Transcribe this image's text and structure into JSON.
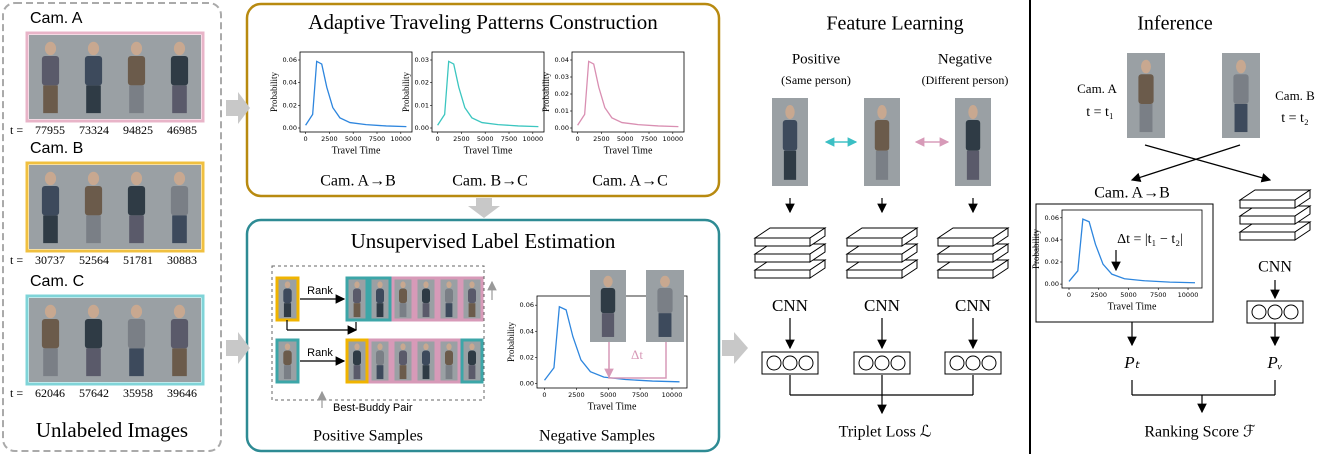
{
  "unlabeled": {
    "title": "Unlabeled Images",
    "cameras": [
      {
        "label": "Cam. A",
        "t_label": "t =",
        "times": [
          77955,
          73324,
          94825,
          46985
        ]
      },
      {
        "label": "Cam. B",
        "t_label": "t =",
        "times": [
          30737,
          52564,
          51781,
          30883
        ]
      },
      {
        "label": "Cam. C",
        "t_label": "t =",
        "times": [
          62046,
          57642,
          35958,
          39646
        ]
      }
    ]
  },
  "traveling_patterns": {
    "title": "Adaptive Traveling Patterns Construction",
    "plots": [
      {
        "caption": "Cam. A→B",
        "ylabel": "Probability",
        "xlabel": "Travel Time",
        "yticks": [
          "0.00",
          "0.02",
          "0.04",
          "0.06"
        ],
        "xticks": [
          "0",
          "2500",
          "5000",
          "7500",
          "10000"
        ]
      },
      {
        "caption": "Cam. B→C",
        "ylabel": "Probability",
        "xlabel": "Travel Time",
        "yticks": [
          "0.00",
          "0.01",
          "0.02",
          "0.03"
        ],
        "xticks": [
          "0",
          "2500",
          "5000",
          "7500",
          "10000"
        ]
      },
      {
        "caption": "Cam. A→C",
        "ylabel": "Probability",
        "xlabel": "Travel Time",
        "yticks": [
          "0.00",
          "0.01",
          "0.02",
          "0.03",
          "0.04"
        ],
        "xticks": [
          "0",
          "2500",
          "5000",
          "7500",
          "10000"
        ]
      }
    ]
  },
  "label_estimation": {
    "title": "Unsupervised Label Estimation",
    "rank_labels": [
      "Rank",
      "Rank"
    ],
    "best_buddy": "Best-Buddy Pair",
    "positive_caption": "Positive Samples",
    "negative_caption": "Negative Samples",
    "delta_t": "Δt",
    "plot": {
      "ylabel": "Probability",
      "xlabel": "Travel Time",
      "yticks": [
        "0.00",
        "0.02",
        "0.04",
        "0.06"
      ],
      "xticks": [
        "0",
        "2500",
        "5000",
        "7500",
        "10000"
      ]
    }
  },
  "feature_learning": {
    "title": "Feature Learning",
    "positive": "Positive",
    "positive_note": "(Same person)",
    "negative": "Negative",
    "negative_note": "(Different person)",
    "cnn_labels": [
      "CNN",
      "CNN",
      "CNN"
    ],
    "loss": "Triplet Loss ℒ"
  },
  "inference": {
    "title": "Inference",
    "cam_a": "Cam. A",
    "time_a": "t = t₁",
    "cam_b": "Cam. B",
    "time_b": "t = t₂",
    "plot": {
      "caption": "Cam. A→B",
      "ylabel": "Probability",
      "xlabel": "Travel Time",
      "yticks": [
        "0.00",
        "0.02",
        "0.04",
        "0.06"
      ],
      "xticks": [
        "0",
        "2500",
        "5000",
        "7500",
        "10000"
      ]
    },
    "delta": "Δt = |t₁ − t₂|",
    "cnn": "CNN",
    "p_t": "Pₜ",
    "p_v": "Pᵥ",
    "score": "Ranking Score ℱ"
  }
}
